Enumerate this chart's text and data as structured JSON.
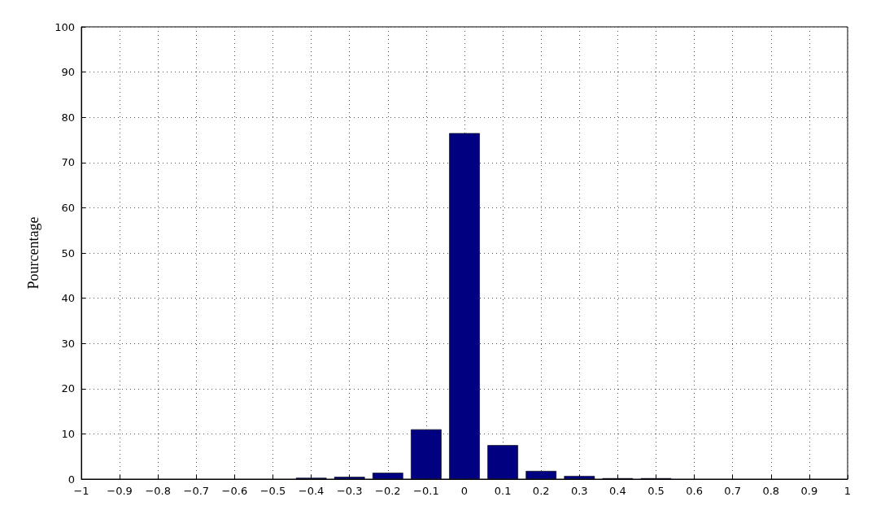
{
  "chart_data": {
    "type": "bar",
    "ylabel": "Pourcentage",
    "x": [
      -0.4,
      -0.3,
      -0.2,
      -0.1,
      0,
      0.1,
      0.2,
      0.3,
      0.4,
      0.5
    ],
    "values": [
      0.3,
      0.5,
      1.4,
      11,
      76.5,
      7.5,
      1.8,
      0.7,
      0.2,
      0.2
    ],
    "color": "#000080",
    "xlim": [
      -1,
      1
    ],
    "xticks": [
      {
        "value": -1,
        "label": "−1"
      },
      {
        "value": -0.9,
        "label": "−0.9"
      },
      {
        "value": -0.8,
        "label": "−0.8"
      },
      {
        "value": -0.7,
        "label": "−0.7"
      },
      {
        "value": -0.6,
        "label": "−0.6"
      },
      {
        "value": -0.5,
        "label": "−0.5"
      },
      {
        "value": -0.4,
        "label": "−0.4"
      },
      {
        "value": -0.3,
        "label": "−0.3"
      },
      {
        "value": -0.2,
        "label": "−0.2"
      },
      {
        "value": -0.1,
        "label": "−0.1"
      },
      0,
      0.1,
      0.2,
      0.3,
      0.4,
      0.5,
      0.6,
      0.7,
      0.8,
      0.9,
      1
    ],
    "ylim": [
      0,
      100
    ],
    "yticks": [
      0,
      10,
      20,
      30,
      40,
      50,
      60,
      70,
      80,
      90,
      100
    ],
    "grid": true
  }
}
